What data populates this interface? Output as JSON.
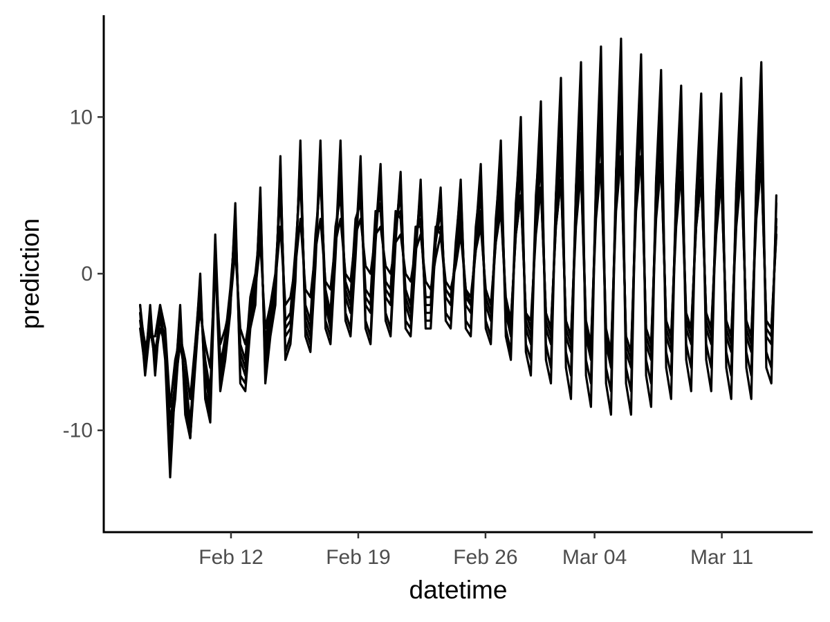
{
  "chart_data": {
    "type": "line",
    "title": "",
    "xlabel": "datetime",
    "ylabel": "prediction",
    "x_start": "2025-02-07",
    "x_end": "2025-03-14",
    "xlim": [
      "2025-02-05",
      "2025-03-16"
    ],
    "ylim": [
      -16.5,
      16.5
    ],
    "x_ticks": [
      {
        "date": "2025-02-12",
        "label": "Feb 12"
      },
      {
        "date": "2025-02-19",
        "label": "Feb 19"
      },
      {
        "date": "2025-02-26",
        "label": "Feb 26"
      },
      {
        "date": "2025-03-04",
        "label": "Mar 04"
      },
      {
        "date": "2025-03-11",
        "label": "Mar 11"
      }
    ],
    "y_ticks": [
      {
        "value": 10,
        "label": "10"
      },
      {
        "value": 0,
        "label": "0"
      },
      {
        "value": -10,
        "label": "-10"
      }
    ],
    "grid": false,
    "legend": "none",
    "line_color": "#000000",
    "series": [
      {
        "values": [
          -2.5,
          -6.5,
          -3.5,
          -5.5,
          -2.5,
          -4.5,
          -11.5,
          -7.5,
          -3.0,
          -7.5,
          -10.5,
          -5.5,
          -1.0,
          -6.5,
          -8.5,
          2.0,
          -6.5,
          -4.5,
          -1.5,
          3.5,
          -5.5,
          -6.5,
          -2.5,
          -1.0,
          4.0,
          -5.5,
          -3.0,
          -1.0,
          6.5,
          -4.0,
          -3.5,
          0.5,
          7.5,
          -3.0,
          -4.0,
          1.5,
          7.0,
          -2.0,
          -3.5,
          2.0,
          6.5,
          -1.5,
          -2.5,
          2.5,
          6.0,
          -2.0,
          -2.5,
          3.0,
          5.5,
          -1.5,
          -2.0,
          3.0,
          5.0,
          -2.0,
          -3.0,
          2.0,
          4.5,
          -2.5,
          -2.5,
          2.0,
          4.0,
          -1.5,
          -2.0,
          1.5,
          4.5,
          -2.0,
          -2.5,
          2.5,
          5.0,
          -2.0,
          -3.0,
          3.0,
          6.5,
          -2.5,
          -4.0,
          3.5,
          7.5,
          -3.5,
          -4.5,
          4.0,
          8.0,
          -3.5,
          -4.5,
          4.0,
          8.5,
          -4.0,
          -5.0,
          4.5,
          9.0,
          -4.0,
          -5.5,
          5.0,
          10.0,
          -4.5,
          -6.0,
          5.5,
          10.5,
          -5.0,
          -6.0,
          5.5,
          10.5,
          -4.5,
          -5.5,
          5.0,
          9.5,
          -4.0,
          -5.0,
          4.5,
          9.0,
          -3.5,
          -4.5,
          4.0,
          8.5,
          -3.5,
          -4.5,
          4.0,
          8.5,
          -4.0,
          -5.0,
          4.5,
          9.0,
          -4.0,
          -5.0,
          5.0,
          9.5,
          -4.0,
          -4.5,
          3.5
        ]
      },
      {
        "values": [
          -3.0,
          -5.5,
          -2.5,
          -6.0,
          -2.0,
          -5.0,
          -12.0,
          -6.5,
          -2.5,
          -8.5,
          -10.0,
          -4.5,
          -0.5,
          -7.5,
          -9.0,
          1.5,
          -7.0,
          -5.0,
          -2.0,
          4.0,
          -6.5,
          -7.0,
          -3.0,
          -1.5,
          5.0,
          -6.5,
          -3.5,
          -1.5,
          7.0,
          -5.0,
          -4.0,
          0.0,
          8.0,
          -3.5,
          -4.5,
          1.0,
          8.5,
          -3.0,
          -4.0,
          1.5,
          8.5,
          -2.5,
          -3.5,
          1.5,
          7.5,
          -3.0,
          -4.0,
          2.5,
          7.0,
          -2.5,
          -3.5,
          2.5,
          6.0,
          -3.0,
          -3.5,
          1.5,
          5.5,
          -3.0,
          -3.0,
          2.5,
          5.0,
          -2.5,
          -3.0,
          2.0,
          5.5,
          -3.0,
          -3.5,
          3.0,
          6.0,
          -3.0,
          -4.0,
          3.5,
          7.5,
          -3.5,
          -5.0,
          4.5,
          9.0,
          -4.5,
          -5.5,
          5.0,
          9.5,
          -4.5,
          -6.0,
          5.0,
          10.5,
          -5.0,
          -6.5,
          5.5,
          11.0,
          -5.5,
          -7.0,
          6.0,
          12.0,
          -6.0,
          -7.5,
          6.5,
          12.5,
          -6.0,
          -7.5,
          6.5,
          12.0,
          -5.5,
          -7.0,
          6.0,
          11.0,
          -5.0,
          -6.5,
          5.5,
          10.5,
          -4.5,
          -6.0,
          5.0,
          10.0,
          -4.5,
          -6.0,
          5.0,
          10.0,
          -5.0,
          -6.5,
          5.5,
          10.5,
          -5.0,
          -6.5,
          6.0,
          11.0,
          -5.0,
          -6.0,
          4.5
        ]
      },
      {
        "values": [
          -2.0,
          -6.0,
          -3.0,
          -5.0,
          -3.0,
          -4.0,
          -10.5,
          -8.0,
          -3.5,
          -7.0,
          -10.5,
          -6.0,
          -1.5,
          -6.0,
          -8.0,
          2.5,
          -6.0,
          -4.0,
          -1.0,
          3.0,
          -5.0,
          -6.0,
          -2.0,
          -0.5,
          3.5,
          -5.0,
          -2.5,
          -0.5,
          6.0,
          -3.5,
          -3.0,
          1.0,
          7.0,
          -2.5,
          -3.5,
          2.0,
          6.5,
          -1.5,
          -3.0,
          2.5,
          5.5,
          -1.0,
          -2.0,
          3.0,
          5.0,
          -1.5,
          -2.0,
          3.5,
          4.5,
          -1.0,
          -1.5,
          3.5,
          4.0,
          -1.5,
          -2.5,
          2.5,
          3.5,
          -2.0,
          -2.0,
          2.5,
          3.0,
          -1.0,
          -1.5,
          1.0,
          3.5,
          -1.5,
          -2.0,
          2.0,
          4.0,
          -1.5,
          -2.5,
          2.5,
          5.5,
          -2.0,
          -3.5,
          3.0,
          6.5,
          -3.0,
          -4.0,
          3.5,
          7.0,
          -3.0,
          -4.0,
          3.5,
          7.5,
          -3.5,
          -4.5,
          4.0,
          8.0,
          -3.5,
          -5.0,
          4.5,
          9.0,
          -4.0,
          -5.5,
          5.0,
          9.5,
          -4.5,
          -5.5,
          5.0,
          9.5,
          -4.0,
          -5.0,
          4.5,
          8.5,
          -3.5,
          -4.5,
          4.0,
          8.0,
          -3.0,
          -4.0,
          3.5,
          7.5,
          -3.0,
          -4.0,
          3.5,
          7.5,
          -3.5,
          -4.5,
          4.0,
          8.0,
          -3.5,
          -4.5,
          4.5,
          8.5,
          -3.5,
          -4.0,
          3.0
        ]
      },
      {
        "values": [
          -2.5,
          -4.5,
          -4.0,
          -4.0,
          -2.0,
          -3.5,
          -8.5,
          -5.5,
          -4.0,
          -5.5,
          -8.0,
          -4.5,
          -2.5,
          -4.5,
          -6.0,
          0.5,
          -4.5,
          -3.5,
          -2.0,
          1.5,
          -3.5,
          -4.5,
          -2.5,
          -1.0,
          2.0,
          -3.5,
          -2.0,
          -0.5,
          3.0,
          -2.0,
          -1.5,
          0.5,
          3.5,
          -1.0,
          -1.5,
          1.5,
          3.5,
          -0.5,
          -1.0,
          2.0,
          3.5,
          0.0,
          -0.5,
          2.5,
          3.5,
          0.5,
          0.0,
          2.5,
          3.0,
          0.5,
          0.0,
          2.0,
          2.5,
          0.0,
          -0.5,
          1.5,
          2.5,
          -0.5,
          -1.0,
          1.0,
          2.5,
          -1.0,
          -1.5,
          1.0,
          3.0,
          -1.0,
          -2.0,
          1.5,
          3.5,
          -1.5,
          -2.5,
          2.0,
          4.5,
          -2.0,
          -3.0,
          2.5,
          5.0,
          -2.5,
          -3.0,
          2.5,
          5.5,
          -2.5,
          -3.5,
          3.0,
          6.0,
          -3.0,
          -4.0,
          3.0,
          6.5,
          -3.5,
          -4.5,
          3.5,
          7.0,
          -4.0,
          -5.0,
          4.0,
          7.5,
          -4.0,
          -5.0,
          4.0,
          7.5,
          -3.5,
          -4.5,
          3.5,
          7.0,
          -3.0,
          -4.0,
          3.0,
          6.5,
          -3.0,
          -3.5,
          3.0,
          6.0,
          -2.5,
          -3.5,
          2.5,
          6.0,
          -3.0,
          -4.0,
          3.0,
          6.5,
          -3.0,
          -4.0,
          3.5,
          7.0,
          -3.0,
          -3.5,
          2.5
        ]
      },
      {
        "values": [
          -3.5,
          -6.0,
          -2.0,
          -6.5,
          -2.5,
          -5.5,
          -13.0,
          -7.0,
          -2.0,
          -9.0,
          -10.5,
          -5.0,
          0.0,
          -8.0,
          -9.5,
          1.0,
          -7.5,
          -5.5,
          -2.5,
          4.5,
          -7.0,
          -7.5,
          -3.5,
          -2.0,
          5.5,
          -7.0,
          -4.0,
          -2.0,
          7.5,
          -5.5,
          -4.5,
          -0.5,
          8.5,
          -4.0,
          -5.0,
          0.5,
          8.0,
          -3.5,
          -4.5,
          1.0,
          7.5,
          -3.0,
          -4.0,
          1.0,
          7.0,
          -3.5,
          -4.5,
          2.0,
          6.5,
          -3.0,
          -4.0,
          2.0,
          6.5,
          -3.5,
          -4.0,
          1.0,
          6.0,
          -3.5,
          -3.5,
          2.0,
          5.5,
          -3.0,
          -3.5,
          1.5,
          6.0,
          -3.5,
          -4.0,
          2.5,
          7.0,
          -3.5,
          -4.5,
          3.0,
          8.5,
          -4.0,
          -5.5,
          4.0,
          10.0,
          -5.0,
          -6.5,
          4.5,
          11.0,
          -5.5,
          -7.0,
          5.0,
          12.5,
          -6.0,
          -8.0,
          5.5,
          13.5,
          -6.5,
          -8.5,
          6.0,
          14.5,
          -7.0,
          -9.0,
          6.5,
          15.0,
          -7.0,
          -9.0,
          6.5,
          14.0,
          -6.5,
          -8.5,
          6.0,
          13.0,
          -6.0,
          -8.0,
          5.5,
          12.0,
          -5.5,
          -7.5,
          5.0,
          11.5,
          -5.5,
          -7.5,
          5.0,
          11.5,
          -6.0,
          -8.0,
          5.5,
          12.5,
          -6.0,
          -8.0,
          6.0,
          13.5,
          -6.0,
          -7.0,
          5.0
        ]
      },
      {
        "values": [
          -2.0,
          -5.0,
          -3.5,
          -5.5,
          -3.5,
          -4.5,
          -9.5,
          -7.0,
          -4.5,
          -6.5,
          -9.5,
          -5.5,
          -2.0,
          -5.5,
          -7.5,
          1.0,
          -5.5,
          -4.5,
          -1.5,
          2.5,
          -4.5,
          -5.5,
          -1.5,
          0.0,
          3.0,
          -4.5,
          -2.0,
          0.0,
          5.0,
          -3.0,
          -2.5,
          1.5,
          6.0,
          -2.0,
          -3.0,
          2.5,
          6.0,
          -1.0,
          -2.5,
          3.0,
          5.0,
          -0.5,
          -1.5,
          3.5,
          4.5,
          -1.0,
          -1.5,
          4.0,
          4.0,
          -0.5,
          -1.0,
          4.0,
          3.5,
          -1.0,
          -2.0,
          3.0,
          3.0,
          -1.5,
          -1.5,
          3.0,
          2.5,
          -0.5,
          -1.0,
          0.5,
          2.5,
          -1.0,
          -1.5,
          1.5,
          3.0,
          -1.0,
          -2.0,
          2.0,
          4.0,
          -1.5,
          -3.0,
          2.5,
          5.0,
          -2.5,
          -3.5,
          3.0,
          5.5,
          -2.5,
          -3.5,
          3.0,
          6.0,
          -3.0,
          -4.0,
          3.5,
          6.5,
          -3.0,
          -4.5,
          4.0,
          7.0,
          -3.5,
          -5.0,
          4.5,
          7.5,
          -4.0,
          -5.0,
          4.5,
          7.5,
          -3.5,
          -4.5,
          4.0,
          7.0,
          -3.0,
          -4.0,
          3.5,
          6.5,
          -2.5,
          -3.5,
          3.0,
          6.0,
          -2.5,
          -3.5,
          3.0,
          6.0,
          -3.0,
          -4.0,
          3.5,
          6.5,
          -3.0,
          -4.0,
          4.0,
          7.0,
          -3.0,
          -3.5,
          2.5
        ]
      }
    ]
  }
}
